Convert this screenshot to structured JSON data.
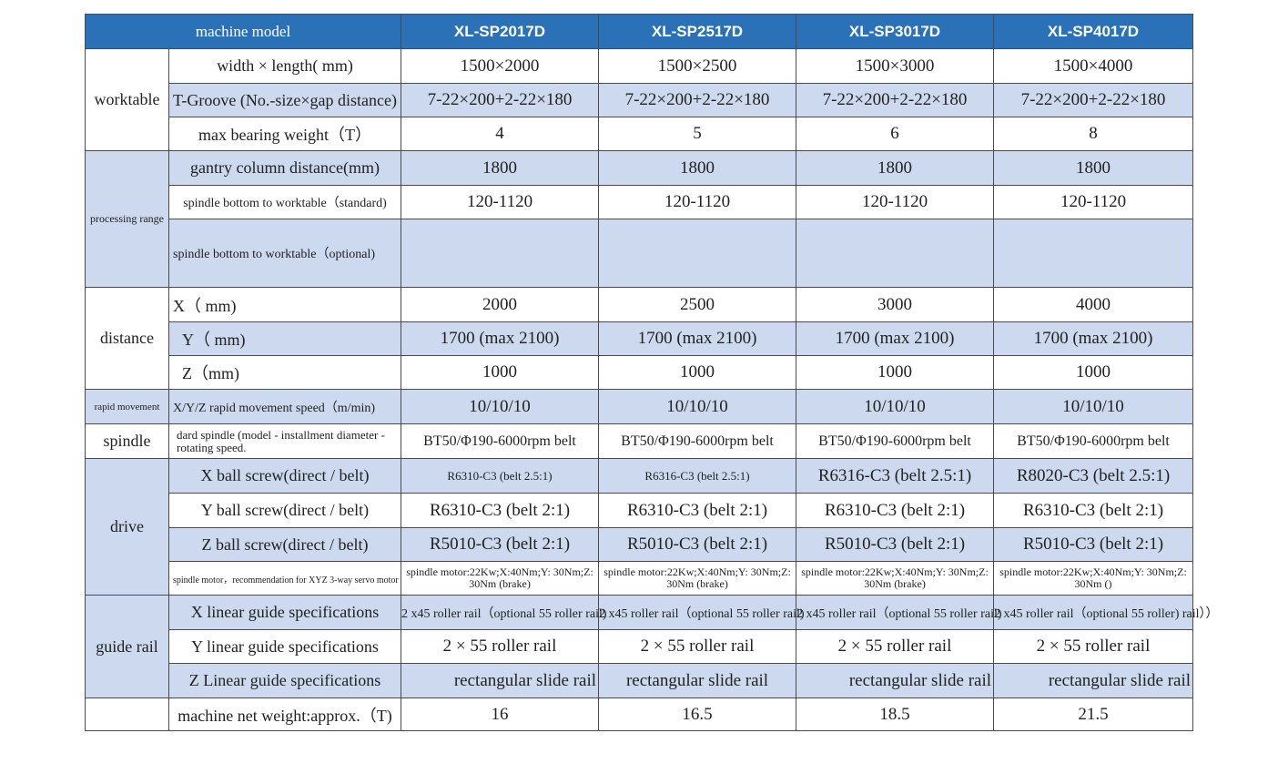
{
  "header": {
    "title": "machine model",
    "models": [
      "XL-SP2017D",
      "XL-SP2517D",
      "XL-SP3017D",
      "XL-SP4017D"
    ]
  },
  "categories": {
    "worktable": "worktable",
    "processing_range": "processing range",
    "distance": "distance",
    "rapid_movement": "rapid movement",
    "spindle": "spindle",
    "drive": "drive",
    "guide_rail": "guide rail"
  },
  "rows": {
    "width_length": {
      "label": "width × length( mm)",
      "values": [
        "1500×2000",
        "1500×2500",
        "1500×3000",
        "1500×4000"
      ]
    },
    "t_groove": {
      "label": "T-Groove (No.-size×gap distance)",
      "values": [
        "7-22×200+2-22×180",
        "7-22×200+2-22×180",
        "7-22×200+2-22×180",
        "7-22×200+2-22×180"
      ]
    },
    "max_bearing": {
      "label": "max bearing weight（T）",
      "values": [
        "4",
        "5",
        "6",
        "8"
      ]
    },
    "gantry": {
      "label": "gantry column distance(mm)",
      "values": [
        "1800",
        "1800",
        "1800",
        "1800"
      ]
    },
    "spindle_std": {
      "label": "spindle bottom to worktable（standard)",
      "values": [
        "120-1120",
        "120-1120",
        "120-1120",
        "120-1120"
      ]
    },
    "spindle_opt": {
      "label": "spindle bottom to worktable（optional)",
      "values": [
        "",
        "",
        "",
        ""
      ]
    },
    "x_mm": {
      "label": "X（ mm)",
      "values": [
        "2000",
        "2500",
        "3000",
        "4000"
      ]
    },
    "y_mm": {
      "label": "Y（ mm)",
      "values": [
        "1700 (max 2100)",
        "1700 (max 2100)",
        "1700 (max 2100)",
        "1700 (max 2100)"
      ]
    },
    "z_mm": {
      "label": "Z（mm)",
      "values": [
        "1000",
        "1000",
        "1000",
        "1000"
      ]
    },
    "rapid": {
      "label": "X/Y/Z rapid movement speed（m/min)",
      "values": [
        "10/10/10",
        "10/10/10",
        "10/10/10",
        "10/10/10"
      ]
    },
    "spindle": {
      "label": "dard spindle (model - installment diameter - rotating speed.",
      "values": [
        "BT50/Φ190-6000rpm belt",
        "BT50/Φ190-6000rpm belt",
        "BT50/Φ190-6000rpm belt",
        "BT50/Φ190-6000rpm belt"
      ]
    },
    "x_ball": {
      "label": "X ball screw(direct / belt)",
      "values": [
        "R6310-C3 (belt 2.5:1)",
        "R6316-C3 (belt 2.5:1)",
        "R6316-C3 (belt 2.5:1)",
        "R8020-C3 (belt 2.5:1)"
      ]
    },
    "y_ball": {
      "label": "Y ball screw(direct / belt)",
      "values": [
        "R6310-C3 (belt 2:1)",
        "R6310-C3 (belt 2:1)",
        "R6310-C3 (belt 2:1)",
        "R6310-C3 (belt 2:1)"
      ]
    },
    "z_ball": {
      "label": "Z ball screw(direct / belt)",
      "values": [
        "R5010-C3 (belt 2:1)",
        "R5010-C3 (belt 2:1)",
        "R5010-C3 (belt 2:1)",
        "R5010-C3 (belt 2:1)"
      ]
    },
    "motor": {
      "label": "spindle motor，recommendation for XYZ 3-way servo motor",
      "values": [
        "spindle motor:22Kw;X:40Nm;Y: 30Nm;Z: 30Nm (brake)",
        "spindle motor:22Kw;X:40Nm;Y: 30Nm;Z: 30Nm (brake)",
        "spindle motor:22Kw;X:40Nm;Y: 30Nm;Z: 30Nm (brake)",
        "spindle motor:22Kw;X:40Nm;Y: 30Nm;Z: 30Nm ()"
      ]
    },
    "x_guide": {
      "label": "X linear guide specifications",
      "values": [
        "2 x45 roller rail（optional 55 roller rail)",
        "2 x45 roller rail（optional 55 roller rail)",
        "2 x45 roller rail（optional 55 roller rail)",
        "2 x45 roller rail（optional 55 roller) rail））"
      ]
    },
    "y_guide": {
      "label": "Y linear guide specifications",
      "values": [
        "2 × 55 roller rail",
        "2 × 55 roller rail",
        "2 × 55 roller rail",
        "2 × 55 roller rail"
      ]
    },
    "z_guide": {
      "label": "Z Linear guide specifications",
      "values": [
        "rectangular slide rail",
        "rectangular slide rail",
        "rectangular slide rail",
        "rectangular slide rail"
      ]
    },
    "net_weight": {
      "label": "machine net weight:approx.（T)",
      "values": [
        "16",
        "16.5",
        "18.5",
        "21.5"
      ]
    }
  },
  "colors": {
    "header_bg": "#2b71b7",
    "band_bg": "#ccd9ee",
    "header_text": "#ffffff"
  }
}
